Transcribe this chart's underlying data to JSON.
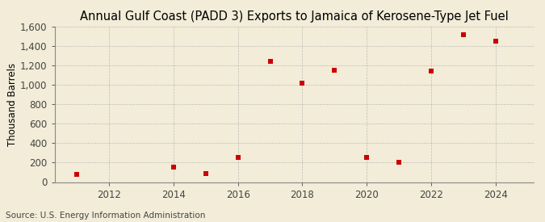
{
  "title": "Annual Gulf Coast (PADD 3) Exports to Jamaica of Kerosene-Type Jet Fuel",
  "ylabel": "Thousand Barrels",
  "source": "Source: U.S. Energy Information Administration",
  "x": [
    2011,
    2014,
    2015,
    2016,
    2017,
    2018,
    2019,
    2020,
    2021,
    2022,
    2023,
    2024
  ],
  "y": [
    75,
    155,
    90,
    255,
    1240,
    1020,
    1150,
    255,
    205,
    1140,
    1520,
    1450
  ],
  "ylim": [
    0,
    1600
  ],
  "xlim": [
    2010.3,
    2025.2
  ],
  "yticks": [
    0,
    200,
    400,
    600,
    800,
    1000,
    1200,
    1400,
    1600
  ],
  "xticks": [
    2012,
    2014,
    2016,
    2018,
    2020,
    2022,
    2024
  ],
  "marker_color": "#CC0000",
  "marker": "s",
  "marker_size": 4,
  "bg_color": "#F2ECD8",
  "plot_bg_color": "#F2ECD8",
  "grid_color": "#AAAAAA",
  "title_fontsize": 10.5,
  "axis_fontsize": 8.5,
  "source_fontsize": 7.5
}
